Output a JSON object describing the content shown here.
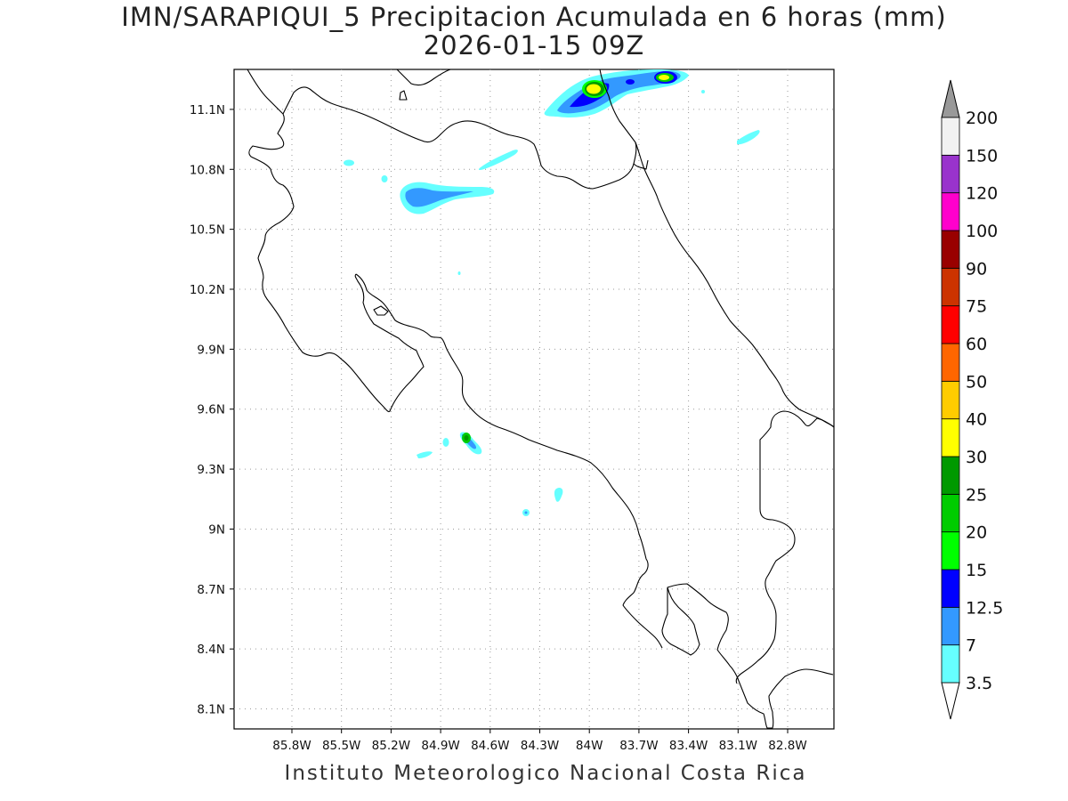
{
  "title": {
    "line1": "IMN/SARAPIQUI_5 Precipitacion Acumulada en 6 horas (mm)",
    "line2": "2026-01-15 09Z"
  },
  "credit": "Instituto Meteorologico Nacional Costa Rica",
  "map": {
    "lon_range": [
      -86.15,
      -82.52
    ],
    "lat_range": [
      8.0,
      11.3
    ],
    "x_ticks": [
      "85.8W",
      "85.5W",
      "85.2W",
      "84.9W",
      "84.6W",
      "84.3W",
      "84W",
      "83.7W",
      "83.4W",
      "83.1W",
      "82.8W"
    ],
    "y_ticks": [
      "11.1N",
      "10.8N",
      "10.5N",
      "10.2N",
      "9.9N",
      "9.6N",
      "9.3N",
      "9N",
      "8.7N",
      "8.4N",
      "8.1N"
    ],
    "grid": "dotted"
  },
  "colorbar": {
    "labels": [
      "3.5",
      "7",
      "12.5",
      "15",
      "20",
      "25",
      "30",
      "40",
      "50",
      "60",
      "75",
      "90",
      "100",
      "120",
      "150",
      "200"
    ],
    "colors": [
      "#66ffff",
      "#3399ff",
      "#0000ff",
      "#00ff00",
      "#00cc00",
      "#009900",
      "#ffff00",
      "#ffcc00",
      "#ff6600",
      "#ff0000",
      "#cc3300",
      "#990000",
      "#ff00cc",
      "#9933cc",
      "#f2f2f2"
    ],
    "units": "mm"
  }
}
